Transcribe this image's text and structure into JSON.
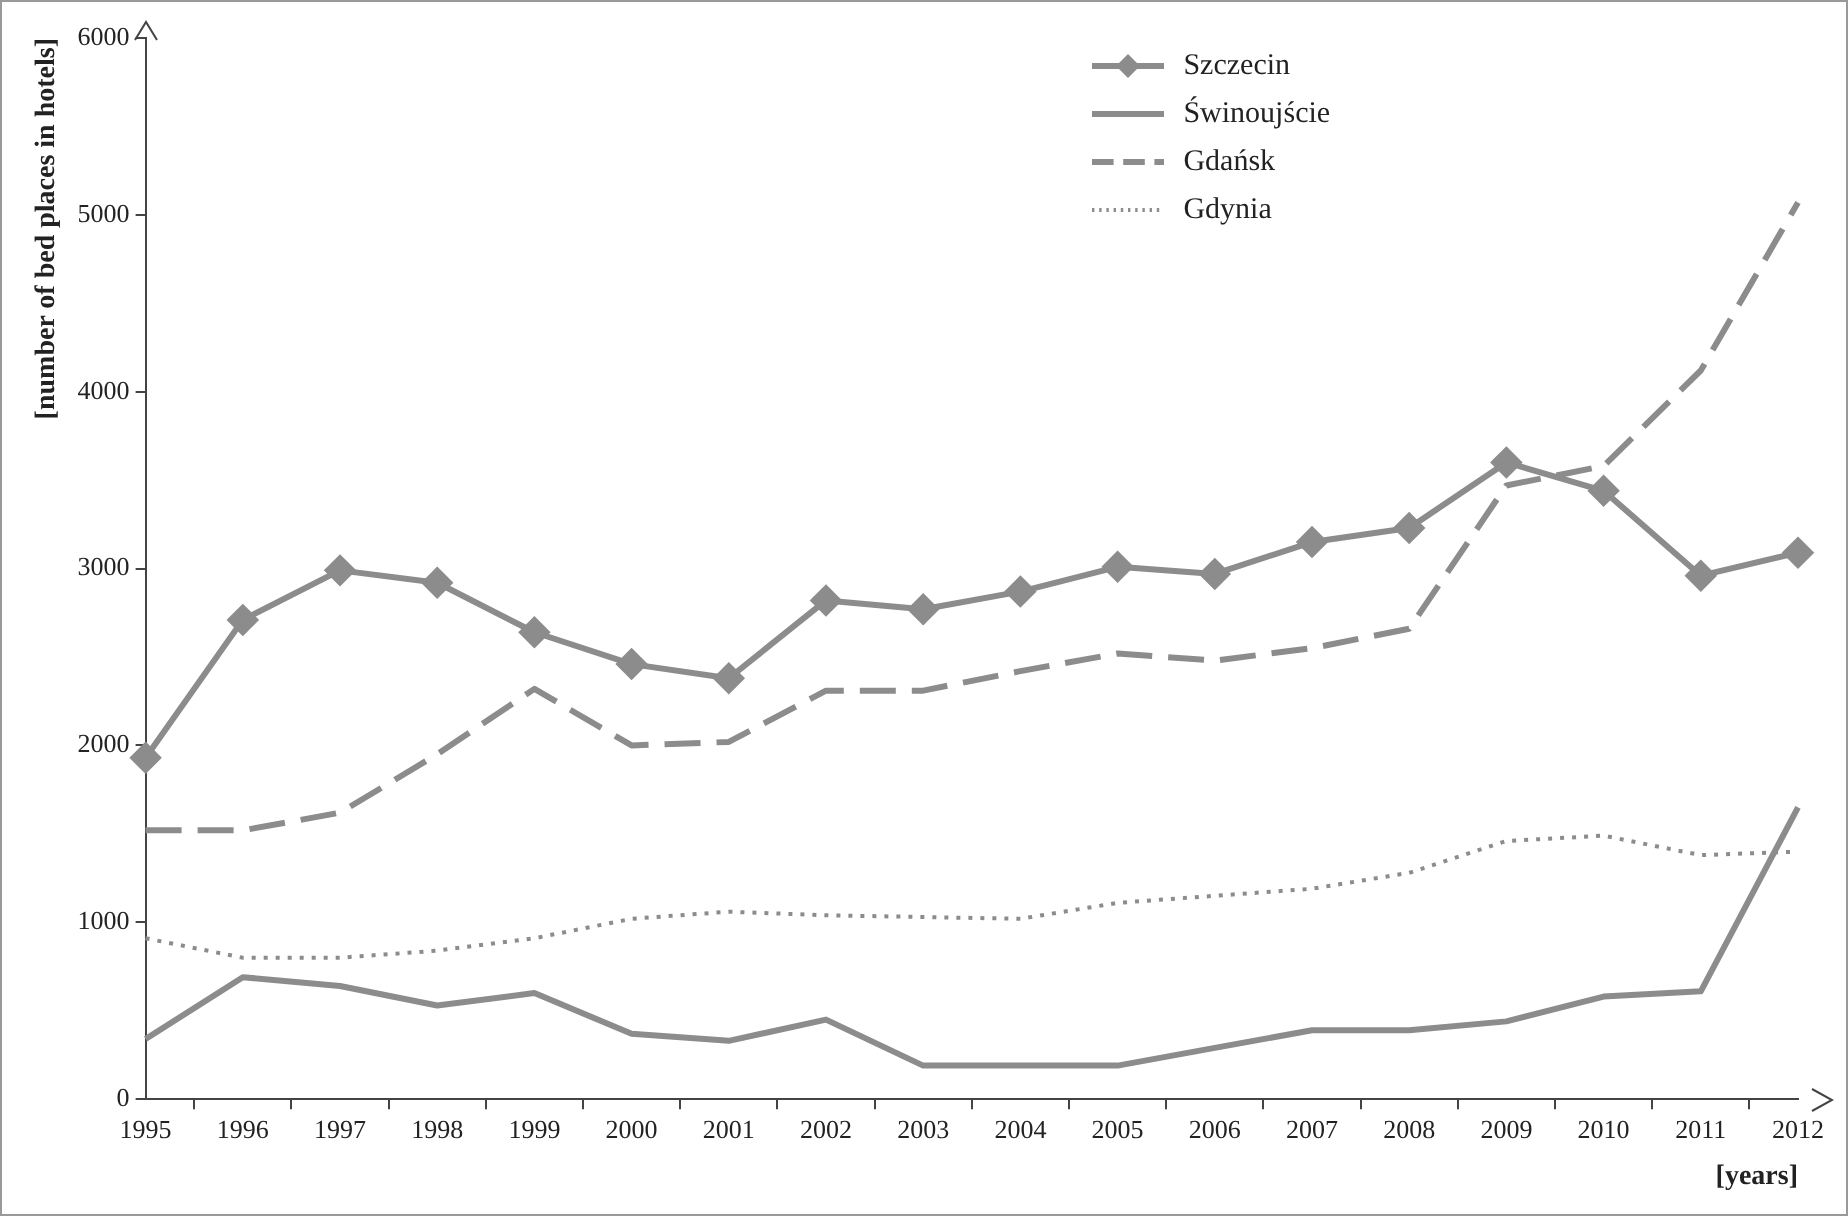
{
  "chart_data": {
    "type": "line",
    "xlabel": "[years]",
    "ylabel": "[number of bed places in hotels]",
    "categories": [
      "1995",
      "1996",
      "1997",
      "1998",
      "1999",
      "2000",
      "2001",
      "2002",
      "2003",
      "2004",
      "2005",
      "2006",
      "2007",
      "2008",
      "2009",
      "2010",
      "2011",
      "2012"
    ],
    "series": [
      {
        "name": "Szczecin",
        "color": "#8c8c8c",
        "marker": "diamond",
        "line_style": "solid",
        "values": [
          1930,
          2710,
          2990,
          2920,
          2640,
          2460,
          2380,
          2820,
          2770,
          2870,
          3010,
          2970,
          3150,
          3230,
          3600,
          3440,
          2960,
          3090
        ]
      },
      {
        "name": "Świnoujście",
        "color": "#8c8c8c",
        "marker": "none",
        "line_style": "solid",
        "values": [
          340,
          690,
          640,
          530,
          600,
          370,
          330,
          450,
          190,
          190,
          190,
          290,
          390,
          390,
          440,
          580,
          610,
          1650
        ]
      },
      {
        "name": "Gdańsk",
        "color": "#8c8c8c",
        "marker": "none",
        "line_style": "dashed",
        "values": [
          1520,
          1520,
          1620,
          1950,
          2320,
          2000,
          2020,
          2310,
          2310,
          2420,
          2520,
          2480,
          2550,
          2660,
          3470,
          3580,
          4120,
          5070
        ]
      },
      {
        "name": "Gdynia",
        "color": "#8c8c8c",
        "marker": "none",
        "line_style": "dotted",
        "values": [
          910,
          800,
          800,
          840,
          910,
          1020,
          1060,
          1040,
          1030,
          1020,
          1110,
          1150,
          1190,
          1280,
          1460,
          1490,
          1380,
          1400
        ]
      }
    ],
    "ylim": [
      0,
      6000
    ],
    "yticks": [
      0,
      1000,
      2000,
      3000,
      4000,
      5000,
      6000
    ],
    "grid": false,
    "legend": "top right"
  }
}
